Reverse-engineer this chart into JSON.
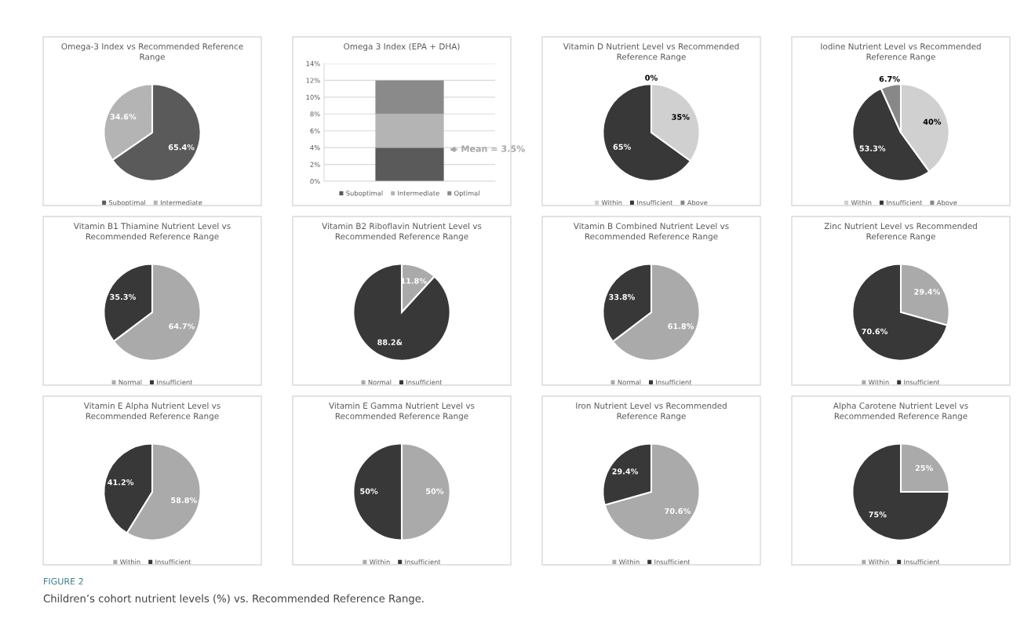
{
  "chart_data": [
    {
      "type": "pie",
      "title": "Omega-3 Index vs Recommended Reference Range",
      "categories": [
        "Suboptimal",
        "Intermediate"
      ],
      "values": [
        65.4,
        34.6
      ],
      "colors": [
        "#5a5a5a",
        "#b4b4b4"
      ],
      "value_labels": [
        "65.4%",
        "34.6%"
      ],
      "legend": "bottom"
    },
    {
      "type": "bar",
      "title": "Omega 3 Index (EPA + DHA)",
      "categories": [
        null
      ],
      "stacked": true,
      "series": [
        {
          "name": "Suboptimal",
          "color": "#5a5a5a",
          "values": [
            4
          ]
        },
        {
          "name": "Intermediate",
          "color": "#b4b4b4",
          "values": [
            4
          ]
        },
        {
          "name": "Optimal",
          "color": "#8a8a8a",
          "values": [
            4
          ]
        }
      ],
      "ylim": [
        0,
        14
      ],
      "yticks": [
        {
          "value": 0,
          "label": "0%"
        },
        {
          "value": 2,
          "label": "2%"
        },
        {
          "value": 4,
          "label": "4%"
        },
        {
          "value": 6,
          "label": "6%"
        },
        {
          "value": 8,
          "label": "8%"
        },
        {
          "value": 10,
          "label": "10%"
        },
        {
          "value": 12,
          "label": "12%"
        },
        {
          "value": 14,
          "label": "14%"
        }
      ],
      "grid": "y",
      "legend": "bottom",
      "annotations": [
        "Mean = 3.5%"
      ]
    },
    {
      "type": "pie",
      "title": "Vitamin D Nutrient Level vs Recommended Reference Range",
      "categories": [
        "Within",
        "Insufficient",
        "Above"
      ],
      "values": [
        35,
        65,
        0
      ],
      "colors": [
        "#d0d0d0",
        "#383838",
        "#888888"
      ],
      "value_labels": [
        "35%",
        "65%",
        "0%"
      ],
      "legend": "bottom"
    },
    {
      "type": "pie",
      "title": "Iodine Nutrient Level vs Recommended Reference Range",
      "categories": [
        "Within",
        "Insufficient",
        "Above"
      ],
      "values": [
        40,
        53.3,
        6.7
      ],
      "colors": [
        "#d0d0d0",
        "#383838",
        "#888888"
      ],
      "value_labels": [
        "40%",
        "53.3%",
        "6.7%"
      ],
      "legend": "bottom"
    },
    {
      "type": "pie",
      "title": "Vitamin B1 Thiamine Nutrient Level vs Recommended Reference Range",
      "categories": [
        "Normal",
        "Insufficient"
      ],
      "values": [
        64.7,
        35.3
      ],
      "colors": [
        "#aaaaaa",
        "#383838"
      ],
      "value_labels": [
        "64.7%",
        "35.3%"
      ],
      "legend": "bottom"
    },
    {
      "type": "pie",
      "title": "Vitamin B2 Riboflavin Nutrient Level vs Recommended Reference Range",
      "categories": [
        "Normal",
        "Insufficient"
      ],
      "values": [
        11.8,
        88.2
      ],
      "colors": [
        "#aaaaaa",
        "#383838"
      ],
      "value_labels": [
        "11.8%",
        "88.2&"
      ],
      "legend": "bottom"
    },
    {
      "type": "pie",
      "title": "Vitamin B Combined Nutrient Level vs Recommended Reference Range",
      "categories": [
        "Normal",
        "Insufficient"
      ],
      "values": [
        61.8,
        33.8
      ],
      "colors": [
        "#aaaaaa",
        "#383838"
      ],
      "value_labels": [
        "61.8%",
        "33.8%"
      ],
      "legend": "bottom"
    },
    {
      "type": "pie",
      "title": "Zinc Nutrient Level vs Recommended Reference Range",
      "categories": [
        "Within",
        "Insufficient"
      ],
      "values": [
        29.4,
        70.6
      ],
      "colors": [
        "#aaaaaa",
        "#383838"
      ],
      "value_labels": [
        "29.4%",
        "70.6%"
      ],
      "legend": "bottom"
    },
    {
      "type": "pie",
      "title": "Vitamin E Alpha Nutrient Level vs Recommended Reference Range",
      "categories": [
        "Within",
        "Insufficient"
      ],
      "values": [
        58.8,
        41.2
      ],
      "colors": [
        "#aaaaaa",
        "#383838"
      ],
      "value_labels": [
        "58.8%",
        "41.2%"
      ],
      "legend": "bottom"
    },
    {
      "type": "pie",
      "title": "Vitamin E Gamma Nutrient Level vs Recommended Reference Range",
      "categories": [
        "Within",
        "Insufficient"
      ],
      "values": [
        50,
        50
      ],
      "colors": [
        "#aaaaaa",
        "#383838"
      ],
      "value_labels": [
        "50%",
        "50%"
      ],
      "legend": "bottom"
    },
    {
      "type": "pie",
      "title": "Iron Nutrient Level vs Recommended Reference Range",
      "categories": [
        "Within",
        "Insufficient"
      ],
      "values": [
        70.6,
        29.4
      ],
      "colors": [
        "#aaaaaa",
        "#383838"
      ],
      "value_labels": [
        "70.6%",
        "29.4%"
      ],
      "legend": "bottom"
    },
    {
      "type": "pie",
      "title": "Alpha Carotene Nutrient Level vs Recommended Reference Range",
      "categories": [
        "Within",
        "Insufficient"
      ],
      "values": [
        25,
        75
      ],
      "colors": [
        "#aaaaaa",
        "#383838"
      ],
      "value_labels": [
        "25%",
        "75%"
      ],
      "legend": "bottom",
      "annotations": [
        "FIGURE 2",
        "Children’s cohort nutrient levels (%) vs. Recommended Reference Range."
      ]
    }
  ]
}
